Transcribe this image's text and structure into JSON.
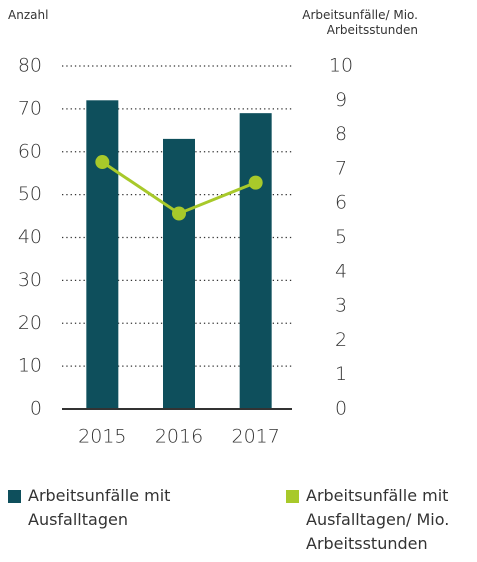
{
  "chart_data": {
    "type": "bar_line",
    "y_label": "Anzahl",
    "y2_label": "Arbeitsunfälle/ Mio. Arbeitsstunden",
    "categories": [
      "2015",
      "2016",
      "2017"
    ],
    "series": [
      {
        "name": "Arbeitsunfälle mit Ausfalltagen",
        "color": "#0e4f5c",
        "type": "bar",
        "values": [
          72,
          63,
          69
        ]
      },
      {
        "name": "Arbeitsunfälle mit Ausfalltagen/ Mio. Arbeitsstunden",
        "color": "#a8c92a",
        "type": "line",
        "axis": "y2",
        "values": [
          7.2,
          5.7,
          6.6
        ]
      }
    ],
    "ylim": [
      0,
      80
    ],
    "yticks": [
      0,
      10,
      20,
      30,
      40,
      50,
      60,
      70,
      80
    ],
    "y2lim": [
      0,
      10
    ],
    "y2ticks": [
      0,
      1,
      2,
      3,
      4,
      5,
      6,
      7,
      8,
      9,
      10
    ],
    "grid": true
  }
}
